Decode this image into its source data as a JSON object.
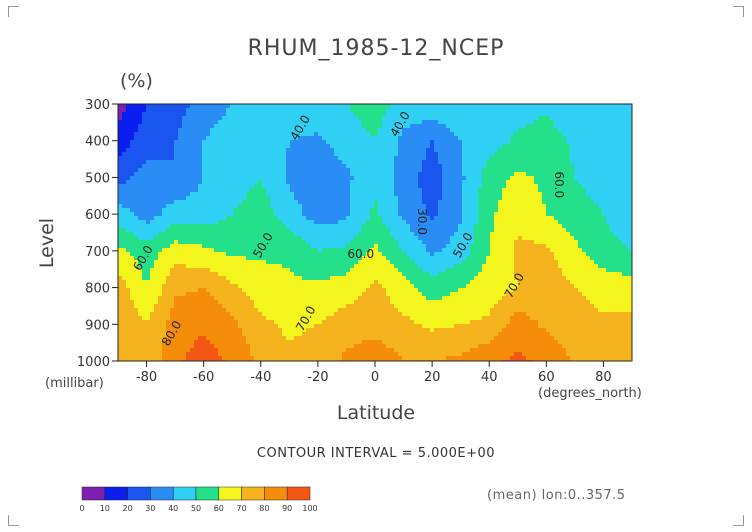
{
  "colors": {
    "bands": [
      "#7d1fb0",
      "#0a1ef0",
      "#1a55f0",
      "#2a8cf5",
      "#30d0f5",
      "#24e08a",
      "#3ecc3e",
      "#f5f51e",
      "#f5b41e",
      "#f58c0a",
      "#f55814",
      "#f01e1e"
    ],
    "text": "#444444"
  },
  "header": {
    "title": "RHUM_1985-12_NCEP",
    "units": "(%)"
  },
  "axes": {
    "ylabel": "Level",
    "yunit": "(millibar)",
    "xlabel": "Latitude",
    "xunit": "(degrees_north)"
  },
  "footer": {
    "contour_interval": "CONTOUR INTERVAL = 5.000E+00",
    "mean_note": "(mean) lon:0..357.5"
  },
  "chart_data": {
    "type": "heatmap",
    "title": "RHUM_1985-12_NCEP",
    "xlabel": "Latitude",
    "ylabel": "Level",
    "x_unit": "(degrees_north)",
    "y_unit": "(millibar)",
    "xlim": [
      -90,
      90
    ],
    "ylim": [
      1000,
      300
    ],
    "x_ticks": [
      "-80",
      "-60",
      "-40",
      "-20",
      "0",
      "20",
      "40",
      "60",
      "80"
    ],
    "x_tick_values": [
      -80,
      -60,
      -40,
      -20,
      0,
      20,
      40,
      60,
      80
    ],
    "y_ticks": [
      "300",
      "400",
      "500",
      "600",
      "700",
      "800",
      "900",
      "1000"
    ],
    "y_tick_values": [
      300,
      400,
      500,
      600,
      700,
      800,
      900,
      1000
    ],
    "contour_interval": 5,
    "latitudes": [
      -90,
      -80,
      -70,
      -60,
      -50,
      -40,
      -30,
      -20,
      -10,
      0,
      10,
      20,
      30,
      40,
      50,
      60,
      70,
      80,
      90
    ],
    "levels": [
      300,
      400,
      500,
      600,
      700,
      800,
      900,
      1000
    ],
    "values": [
      [
        5,
        20,
        25,
        35,
        40,
        48,
        50,
        48,
        50,
        55,
        45,
        48,
        48,
        45,
        45,
        48,
        42,
        42,
        40
      ],
      [
        15,
        25,
        30,
        40,
        45,
        50,
        40,
        38,
        45,
        50,
        38,
        30,
        40,
        45,
        52,
        55,
        48,
        45,
        45
      ],
      [
        25,
        35,
        30,
        40,
        45,
        50,
        38,
        32,
        38,
        48,
        35,
        25,
        38,
        55,
        62,
        58,
        50,
        45,
        42
      ],
      [
        45,
        35,
        45,
        45,
        50,
        55,
        45,
        35,
        38,
        52,
        38,
        28,
        38,
        58,
        68,
        60,
        55,
        50,
        40
      ],
      [
        62,
        55,
        65,
        62,
        58,
        58,
        58,
        50,
        52,
        62,
        50,
        38,
        45,
        60,
        72,
        72,
        62,
        55,
        50
      ],
      [
        75,
        60,
        78,
        80,
        72,
        65,
        62,
        62,
        65,
        72,
        65,
        55,
        60,
        65,
        70,
        75,
        70,
        65,
        65
      ],
      [
        78,
        70,
        85,
        88,
        82,
        72,
        68,
        70,
        75,
        75,
        72,
        68,
        70,
        72,
        85,
        78,
        75,
        72,
        72
      ],
      [
        80,
        70,
        88,
        95,
        88,
        78,
        72,
        75,
        82,
        88,
        80,
        80,
        82,
        88,
        92,
        88,
        78,
        72,
        70
      ]
    ],
    "contour_labels": [
      "40.0",
      "40.0",
      "30.0",
      "50.0",
      "50.0",
      "60.0",
      "60.0",
      "60.0",
      "70.0",
      "70.0",
      "80.0"
    ],
    "colorbar": {
      "ticks": [
        "0",
        "10",
        "20",
        "30",
        "40",
        "50",
        "60",
        "70",
        "80",
        "90",
        "100"
      ]
    }
  }
}
